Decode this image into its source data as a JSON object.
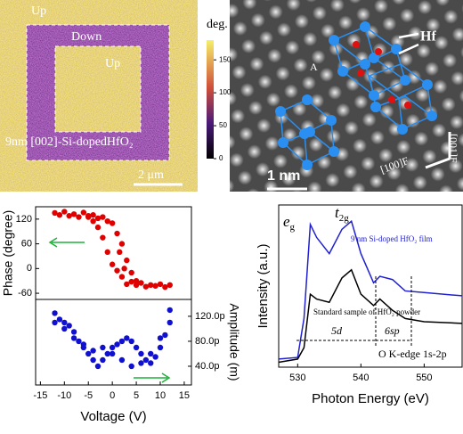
{
  "panels": {
    "pfm": {
      "up_outer": "Up",
      "down": "Down",
      "up_inner": "Up",
      "sample": "9nm [002]-Si-dopedHfO₂",
      "scale": "2 μm",
      "colorbar": {
        "label": "deg.",
        "lim": [
          0,
          180
        ],
        "ticks": [
          150,
          100,
          50,
          0
        ]
      }
    },
    "stem": {
      "atom": "Hf",
      "site": "A",
      "scale": "1 nm",
      "axis_h": "[100]F",
      "axis_v": "[001]F"
    }
  },
  "chart_data": [
    {
      "type": "scatter",
      "ylabel": "Phase (degree)",
      "color": "#e00000",
      "xlim": [
        -16,
        16.5
      ],
      "ylim": [
        -75,
        150
      ],
      "yticks": [
        120,
        60,
        0,
        -60
      ],
      "x": [
        -12,
        -11,
        -10,
        -9,
        -8,
        -7,
        -6,
        -5,
        -4,
        -3,
        -2,
        -1,
        0,
        1,
        2,
        3,
        4,
        5,
        12,
        11,
        10,
        9,
        8,
        7,
        6,
        5,
        4,
        3,
        2,
        1,
        0,
        -1,
        -2,
        -3,
        -4,
        -5,
        1.5,
        2.5
      ],
      "values": [
        135,
        130,
        138,
        128,
        132,
        125,
        136,
        128,
        130,
        122,
        125,
        115,
        110,
        85,
        60,
        20,
        -10,
        -30,
        -40,
        -45,
        -38,
        -42,
        -40,
        -44,
        -35,
        -40,
        -32,
        -38,
        -20,
        -5,
        10,
        40,
        75,
        100,
        115,
        125,
        40,
        0
      ]
    },
    {
      "type": "scatter",
      "xlabel": "Voltage (V)",
      "ylabel": "Amplitude (m)",
      "color": "#1010d0",
      "xlim": [
        -16,
        16.5
      ],
      "ylim": [
        1e-11,
        1.47e-10
      ],
      "xticks": [
        -15,
        -10,
        -5,
        0,
        5,
        10,
        15
      ],
      "yticks": [
        {
          "value": 1.2e-10,
          "label": "120.0p"
        },
        {
          "value": 8e-11,
          "label": "80.0p"
        },
        {
          "value": 4e-11,
          "label": "40.0p"
        }
      ],
      "x": [
        -12,
        -11,
        -10,
        -9,
        -8,
        -7,
        -6,
        -5,
        -4,
        -3,
        -2,
        -1,
        0,
        1,
        2,
        3,
        4,
        5,
        6,
        7,
        8,
        9,
        10,
        11,
        12,
        -12,
        -10,
        -8,
        -6,
        -4,
        -2,
        0,
        2,
        4,
        6,
        8,
        10,
        12
      ],
      "values": [
        1.25e-10,
        1.15e-10,
        1.1e-10,
        1.05e-10,
        9.5e-11,
        8e-11,
        7e-11,
        6e-11,
        5e-11,
        4e-11,
        5e-11,
        6e-11,
        7e-11,
        7.5e-11,
        8e-11,
        8.5e-11,
        8e-11,
        7e-11,
        6e-11,
        5e-11,
        4.5e-11,
        5.5e-11,
        7e-11,
        9e-11,
        1.3e-10,
        1.1e-10,
        1e-10,
        8.5e-11,
        7.5e-11,
        6.5e-11,
        7e-11,
        6e-11,
        5e-11,
        4e-11,
        4.5e-11,
        6e-11,
        8.5e-11,
        1.1e-10
      ]
    },
    {
      "type": "line",
      "xlabel": "Photon Energy (eV)",
      "ylabel": "Intensity (a.u.)",
      "xlim": [
        527,
        556
      ],
      "ylim": [
        0,
        1
      ],
      "xticks": [
        530,
        540,
        550
      ],
      "eg": {
        "main": "e",
        "sub": "g"
      },
      "t2g": {
        "main": "t",
        "sub": "2g"
      },
      "band_5d": "5d",
      "band_6sp": "6sp",
      "edge": "O K-edge 1s-2p",
      "x": [
        527,
        530,
        531,
        532,
        533,
        535,
        537,
        538.5,
        540,
        542,
        543,
        545,
        547,
        550,
        556
      ],
      "series": [
        {
          "name": "9 nm Si-doped HfO₂ film",
          "color": "#2020d0",
          "values": [
            0.05,
            0.06,
            0.3,
            0.88,
            0.8,
            0.7,
            0.85,
            0.9,
            0.7,
            0.52,
            0.56,
            0.54,
            0.47,
            0.46,
            0.44
          ]
        },
        {
          "name": "Standard sample of HfO₂ powder",
          "color": "#000000",
          "values": [
            0.03,
            0.05,
            0.12,
            0.45,
            0.42,
            0.4,
            0.55,
            0.6,
            0.45,
            0.38,
            0.42,
            0.35,
            0.3,
            0.28,
            0.27
          ]
        }
      ]
    }
  ]
}
